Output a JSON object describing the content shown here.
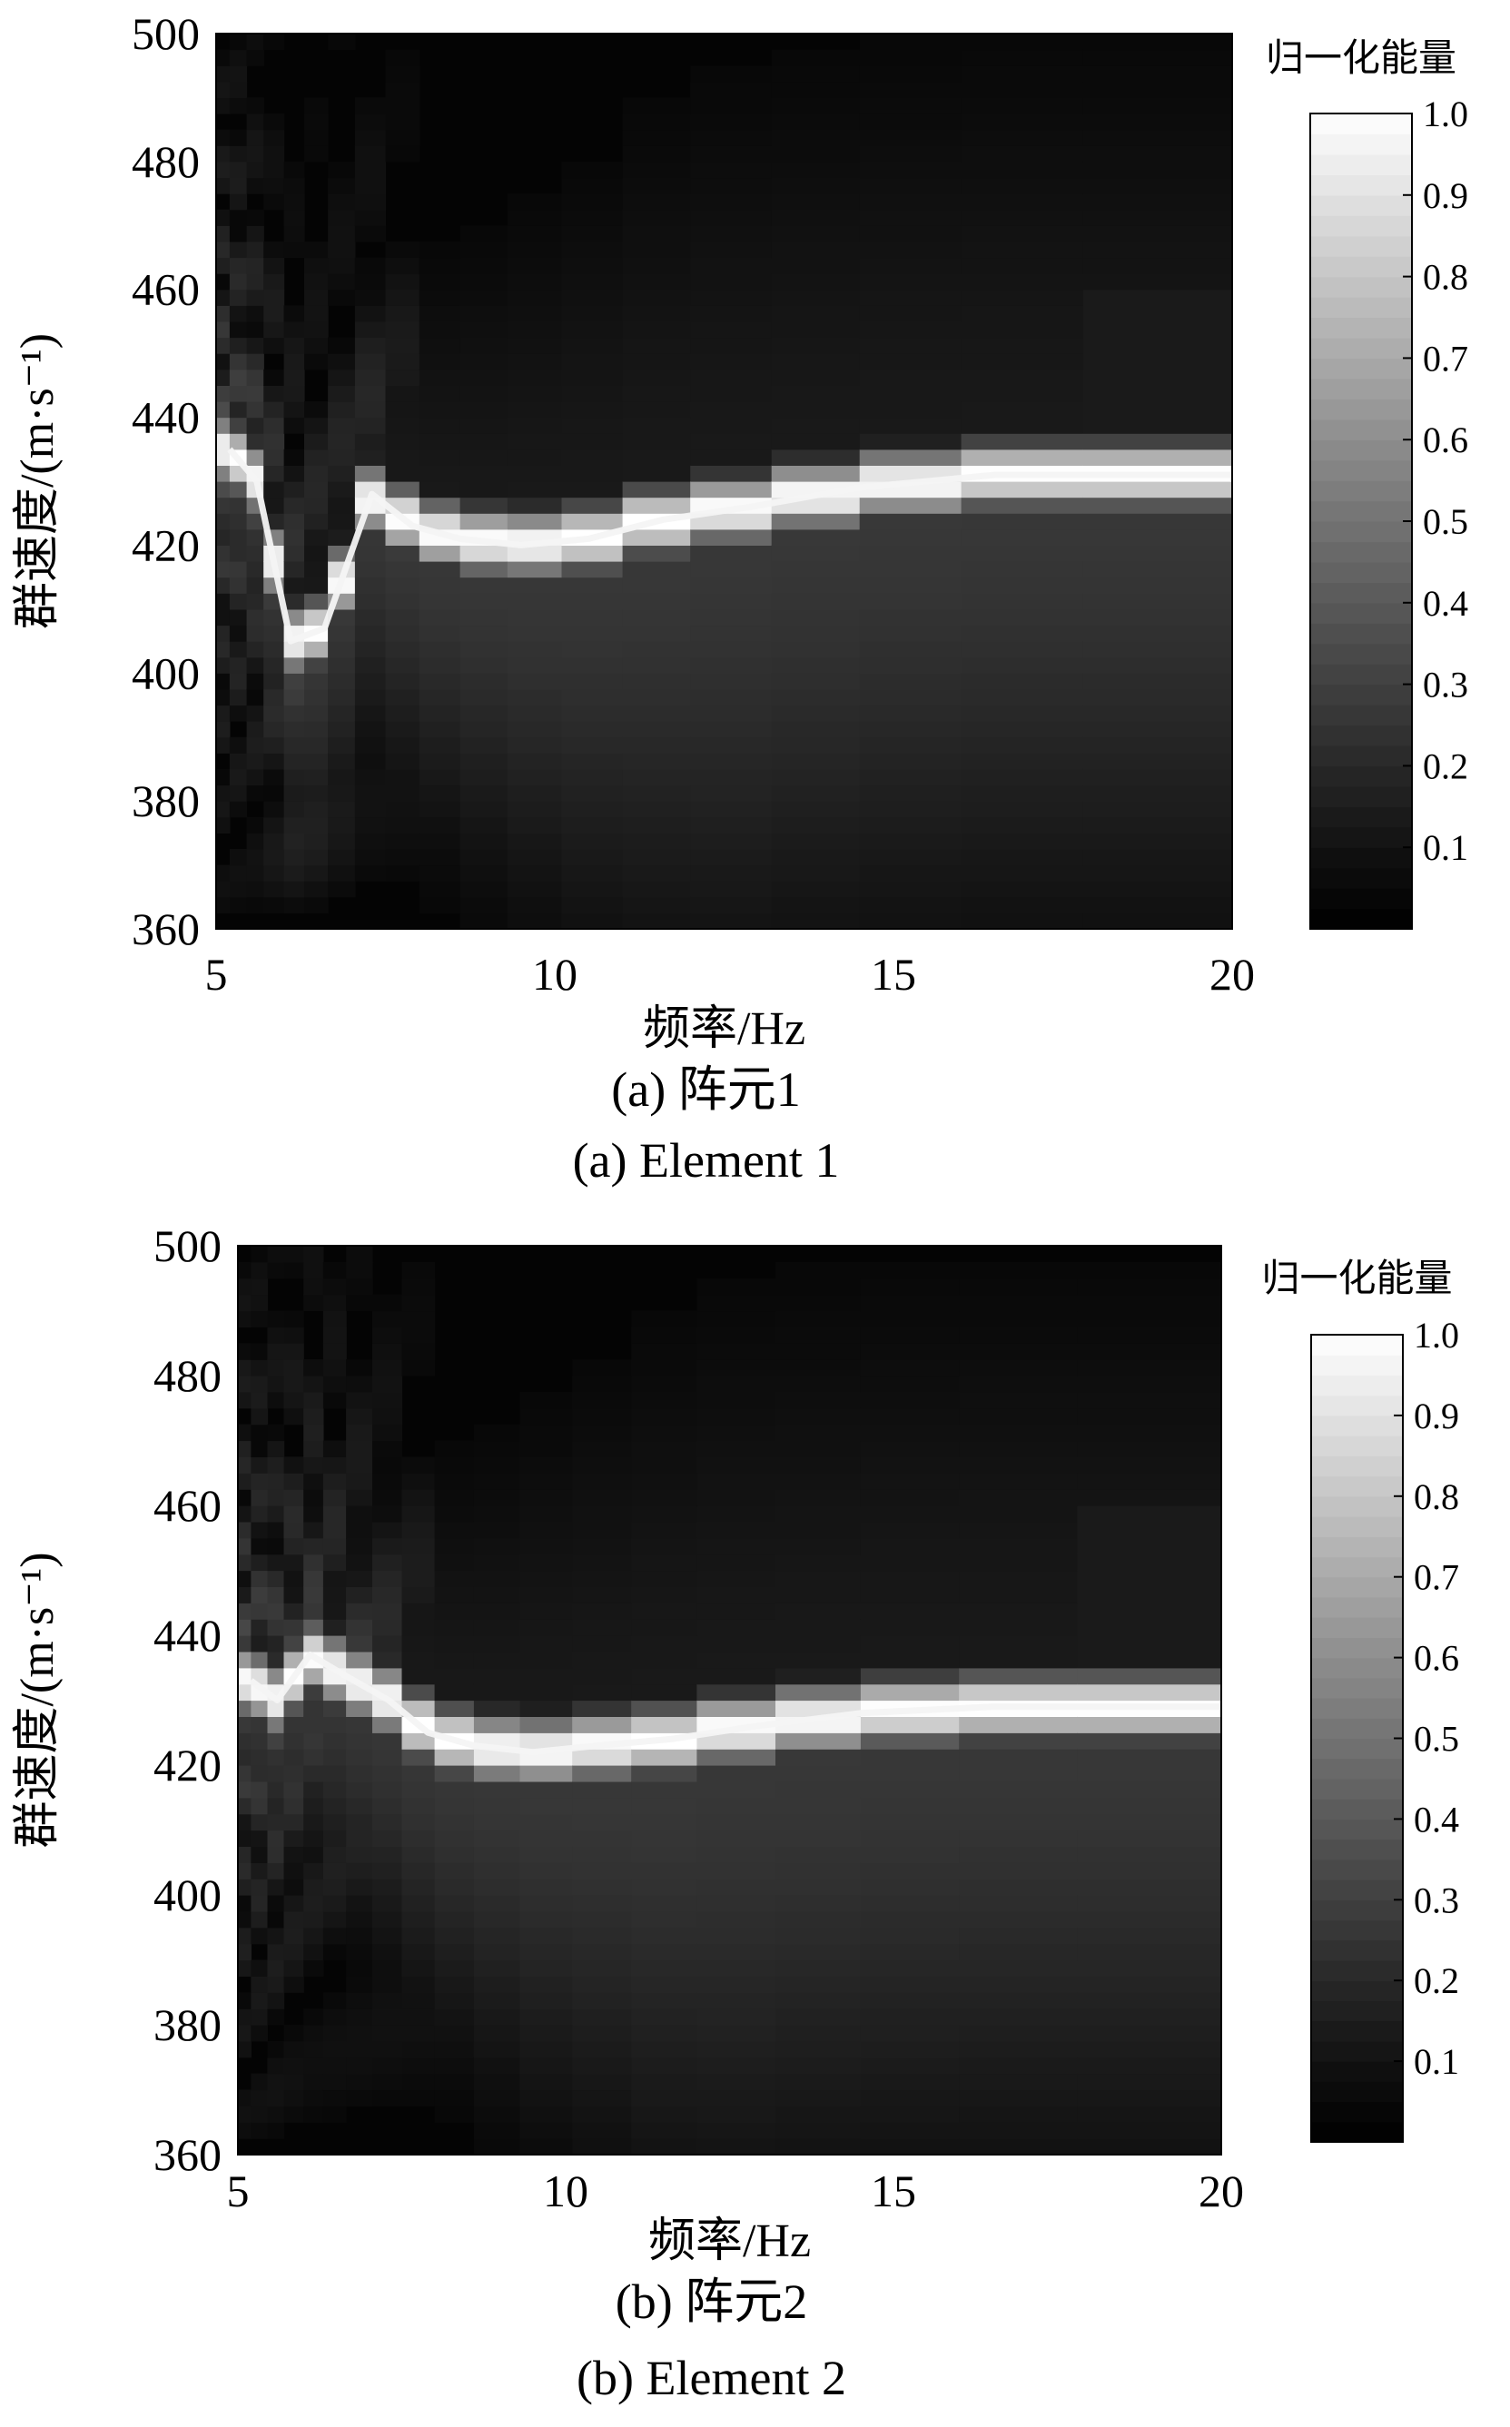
{
  "chart_data": [
    {
      "type": "heatmap",
      "caption_cn": "(a) 阵元1",
      "caption_en": "(a) Element 1",
      "xlabel": "频率/Hz",
      "ylabel": "群速度/(m·s⁻¹)",
      "xlim": [
        5,
        20
      ],
      "ylim": [
        360,
        500
      ],
      "xticks": [
        "5",
        "10",
        "15",
        "20"
      ],
      "yticks": [
        "360",
        "380",
        "400",
        "420",
        "440",
        "460",
        "480",
        "500"
      ],
      "colorbar": {
        "title": "归一化能量",
        "range": [
          0,
          1
        ],
        "ticks": [
          "0.1",
          "0.2",
          "0.3",
          "0.4",
          "0.5",
          "0.6",
          "0.7",
          "0.8",
          "0.9",
          "1.0"
        ],
        "colormap": "gray"
      },
      "ridge": {
        "frequency_hz": [
          5.2,
          5.6,
          6.1,
          6.6,
          7.3,
          7.9,
          8.6,
          9.5,
          10.5,
          11.6,
          12.9,
          14.5,
          16.5,
          18.5,
          20
        ],
        "group_velocity": [
          435,
          430,
          405,
          407,
          428,
          423,
          421,
          420,
          421,
          424,
          426,
          429,
          431,
          431,
          431
        ]
      }
    },
    {
      "type": "heatmap",
      "caption_cn": "(b) 阵元2",
      "caption_en": "(b) Element 2",
      "xlabel": "频率/Hz",
      "ylabel": "群速度/(m·s⁻¹)",
      "xlim": [
        5,
        20
      ],
      "ylim": [
        360,
        500
      ],
      "xticks": [
        "5",
        "10",
        "15",
        "20"
      ],
      "yticks": [
        "360",
        "380",
        "400",
        "420",
        "440",
        "460",
        "480",
        "500"
      ],
      "colorbar": {
        "title": "归一化能量",
        "range": [
          0,
          1
        ],
        "ticks": [
          "0.1",
          "0.2",
          "0.3",
          "0.4",
          "0.5",
          "0.6",
          "0.7",
          "0.8",
          "0.9",
          "1.0"
        ],
        "colormap": "gray"
      },
      "ridge": {
        "frequency_hz": [
          5.2,
          5.6,
          6.1,
          6.6,
          7.3,
          7.9,
          8.6,
          9.5,
          10.5,
          11.6,
          12.9,
          14.5,
          16.5,
          18.5,
          20
        ],
        "group_velocity": [
          433,
          430,
          437,
          434,
          430,
          425,
          423,
          422,
          423,
          424,
          426,
          428,
          429,
          429,
          429
        ]
      }
    }
  ]
}
